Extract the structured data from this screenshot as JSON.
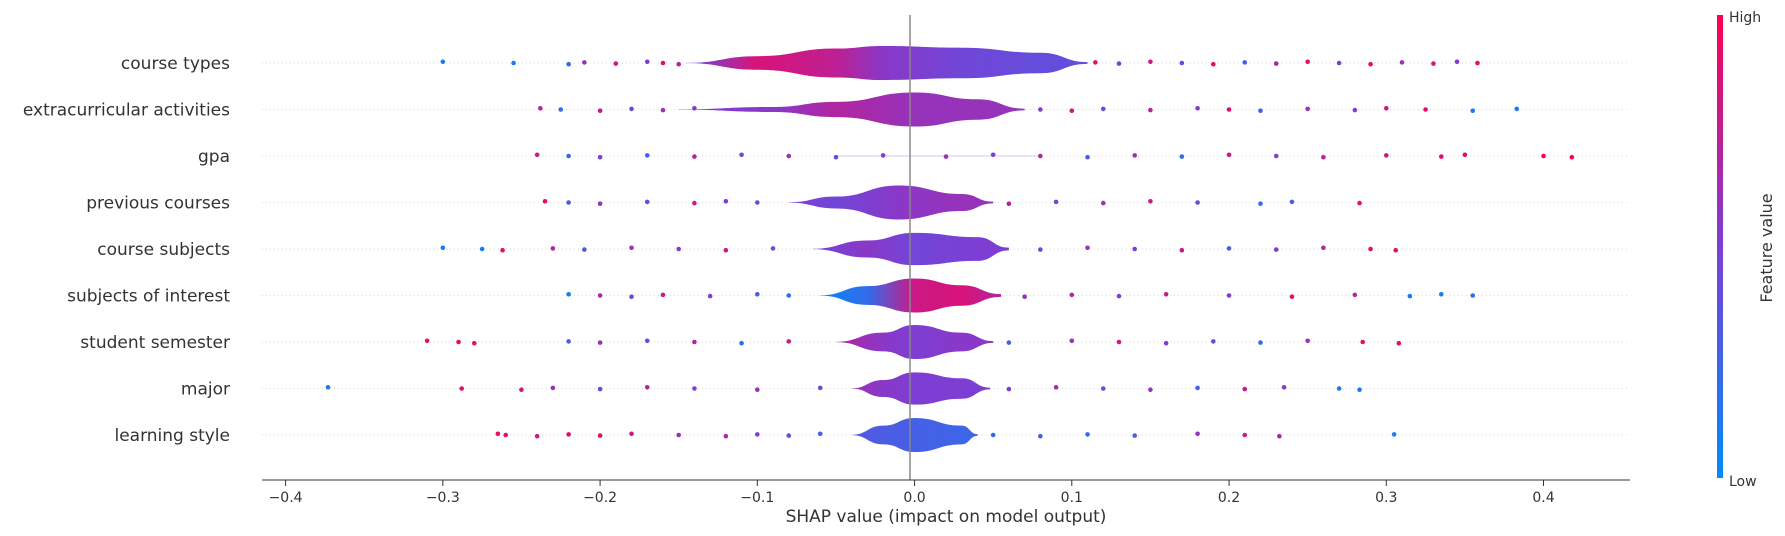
{
  "chart_data": {
    "type": "scatter",
    "subtype": "violin-summary",
    "title": "",
    "xlabel": "SHAP value (impact on model output)",
    "xlim": [
      -0.415,
      0.455
    ],
    "xticks": [
      "−0.4",
      "−0.3",
      "−0.2",
      "−0.1",
      "0.0",
      "0.1",
      "0.2",
      "0.3",
      "0.4"
    ],
    "xtick_values": [
      -0.4,
      -0.3,
      -0.2,
      -0.1,
      0.0,
      0.1,
      0.2,
      0.3,
      0.4
    ],
    "colorbar": {
      "title": "Feature value",
      "high_label": "High",
      "low_label": "Low",
      "low_color": "#008bfb",
      "high_color": "#ff0052"
    },
    "features": [
      {
        "name": "course types",
        "min": -0.303,
        "max": 0.36,
        "violin": [
          [
            -0.145,
            0.01,
            0.4
          ],
          [
            -0.1,
            0.4,
            0.85
          ],
          [
            -0.05,
            0.85,
            0.75
          ],
          [
            -0.02,
            1.0,
            0.55
          ],
          [
            0.03,
            0.9,
            0.45
          ],
          [
            0.08,
            0.6,
            0.4
          ],
          [
            0.11,
            0.05,
            0.4
          ]
        ],
        "points": [
          [
            -0.3,
            0.1
          ],
          [
            -0.255,
            0.1
          ],
          [
            -0.22,
            0.2
          ],
          [
            -0.21,
            0.6
          ],
          [
            -0.19,
            0.8
          ],
          [
            -0.17,
            0.5
          ],
          [
            -0.16,
            0.9
          ],
          [
            -0.15,
            0.7
          ],
          [
            0.115,
            0.9
          ],
          [
            0.13,
            0.5
          ],
          [
            0.15,
            0.8
          ],
          [
            0.17,
            0.4
          ],
          [
            0.19,
            0.9
          ],
          [
            0.21,
            0.3
          ],
          [
            0.23,
            0.7
          ],
          [
            0.25,
            0.9
          ],
          [
            0.27,
            0.5
          ],
          [
            0.29,
            0.9
          ],
          [
            0.31,
            0.6
          ],
          [
            0.33,
            0.8
          ],
          [
            0.345,
            0.5
          ],
          [
            0.358,
            0.9
          ]
        ]
      },
      {
        "name": "extracurricular activities",
        "min": -0.24,
        "max": 0.383,
        "violin": [
          [
            -0.15,
            0.01,
            0.5
          ],
          [
            -0.09,
            0.15,
            0.55
          ],
          [
            -0.05,
            0.45,
            0.7
          ],
          [
            0.0,
            1.0,
            0.6
          ],
          [
            0.04,
            0.6,
            0.6
          ],
          [
            0.07,
            0.05,
            0.6
          ]
        ],
        "points": [
          [
            -0.238,
            0.7
          ],
          [
            -0.225,
            0.2
          ],
          [
            -0.2,
            0.8
          ],
          [
            -0.18,
            0.4
          ],
          [
            -0.16,
            0.6
          ],
          [
            -0.14,
            0.5
          ],
          [
            0.08,
            0.5
          ],
          [
            0.1,
            0.8
          ],
          [
            0.12,
            0.4
          ],
          [
            0.15,
            0.7
          ],
          [
            0.18,
            0.5
          ],
          [
            0.2,
            0.9
          ],
          [
            0.22,
            0.3
          ],
          [
            0.25,
            0.6
          ],
          [
            0.28,
            0.5
          ],
          [
            0.3,
            0.8
          ],
          [
            0.325,
            0.9
          ],
          [
            0.355,
            0.1
          ],
          [
            0.383,
            0.1
          ]
        ]
      },
      {
        "name": "gpa",
        "min": -0.245,
        "max": 0.418,
        "violin": [
          [
            -0.05,
            0.01,
            0.5
          ],
          [
            0.0,
            0.01,
            0.5
          ],
          [
            0.08,
            0.01,
            0.6
          ]
        ],
        "points": [
          [
            -0.24,
            0.8
          ],
          [
            -0.22,
            0.2
          ],
          [
            -0.2,
            0.5
          ],
          [
            -0.17,
            0.3
          ],
          [
            -0.14,
            0.7
          ],
          [
            -0.11,
            0.4
          ],
          [
            -0.08,
            0.6
          ],
          [
            -0.05,
            0.4
          ],
          [
            -0.02,
            0.5
          ],
          [
            0.02,
            0.6
          ],
          [
            0.05,
            0.5
          ],
          [
            0.08,
            0.7
          ],
          [
            0.11,
            0.3
          ],
          [
            0.14,
            0.6
          ],
          [
            0.17,
            0.2
          ],
          [
            0.2,
            0.8
          ],
          [
            0.23,
            0.5
          ],
          [
            0.26,
            0.7
          ],
          [
            0.3,
            0.8
          ],
          [
            0.335,
            0.9
          ],
          [
            0.35,
            0.9
          ],
          [
            0.4,
            1.0
          ],
          [
            0.418,
            1.0
          ]
        ]
      },
      {
        "name": "previous courses",
        "min": -0.236,
        "max": 0.283,
        "violin": [
          [
            -0.08,
            0.01,
            0.5
          ],
          [
            -0.05,
            0.35,
            0.45
          ],
          [
            -0.01,
            1.0,
            0.55
          ],
          [
            0.03,
            0.5,
            0.6
          ],
          [
            0.05,
            0.05,
            0.6
          ]
        ],
        "points": [
          [
            -0.235,
            0.9
          ],
          [
            -0.22,
            0.3
          ],
          [
            -0.2,
            0.6
          ],
          [
            -0.17,
            0.4
          ],
          [
            -0.14,
            0.8
          ],
          [
            -0.12,
            0.5
          ],
          [
            -0.1,
            0.4
          ],
          [
            0.06,
            0.7
          ],
          [
            0.09,
            0.5
          ],
          [
            0.12,
            0.6
          ],
          [
            0.15,
            0.8
          ],
          [
            0.18,
            0.4
          ],
          [
            0.22,
            0.2
          ],
          [
            0.24,
            0.3
          ],
          [
            0.283,
            0.9
          ]
        ]
      },
      {
        "name": "course subjects",
        "min": -0.3,
        "max": 0.306,
        "violin": [
          [
            -0.065,
            0.01,
            0.45
          ],
          [
            -0.03,
            0.5,
            0.55
          ],
          [
            0.0,
            0.95,
            0.45
          ],
          [
            0.04,
            0.7,
            0.5
          ],
          [
            0.06,
            0.08,
            0.5
          ]
        ],
        "points": [
          [
            -0.3,
            0.1
          ],
          [
            -0.275,
            0.1
          ],
          [
            -0.262,
            0.9
          ],
          [
            -0.23,
            0.7
          ],
          [
            -0.21,
            0.3
          ],
          [
            -0.18,
            0.6
          ],
          [
            -0.15,
            0.5
          ],
          [
            -0.12,
            0.8
          ],
          [
            -0.09,
            0.4
          ],
          [
            0.08,
            0.4
          ],
          [
            0.11,
            0.6
          ],
          [
            0.14,
            0.5
          ],
          [
            0.17,
            0.8
          ],
          [
            0.2,
            0.3
          ],
          [
            0.23,
            0.5
          ],
          [
            0.26,
            0.7
          ],
          [
            0.29,
            0.9
          ],
          [
            0.306,
            0.9
          ]
        ]
      },
      {
        "name": "subjects of interest",
        "min": -0.22,
        "max": 0.355,
        "violin": [
          [
            -0.06,
            0.01,
            0.05
          ],
          [
            -0.03,
            0.55,
            0.2
          ],
          [
            0.0,
            1.0,
            0.8
          ],
          [
            0.03,
            0.6,
            0.85
          ],
          [
            0.055,
            0.08,
            0.7
          ]
        ],
        "points": [
          [
            -0.22,
            0.1
          ],
          [
            -0.2,
            0.7
          ],
          [
            -0.18,
            0.4
          ],
          [
            -0.16,
            0.8
          ],
          [
            -0.13,
            0.5
          ],
          [
            -0.1,
            0.3
          ],
          [
            -0.08,
            0.2
          ],
          [
            0.07,
            0.6
          ],
          [
            0.1,
            0.7
          ],
          [
            0.13,
            0.5
          ],
          [
            0.16,
            0.8
          ],
          [
            0.2,
            0.5
          ],
          [
            0.24,
            0.9
          ],
          [
            0.28,
            0.7
          ],
          [
            0.315,
            0.1
          ],
          [
            0.335,
            0.1
          ],
          [
            0.355,
            0.2
          ]
        ]
      },
      {
        "name": "student semester",
        "min": -0.31,
        "max": 0.308,
        "violin": [
          [
            -0.05,
            0.01,
            0.7
          ],
          [
            -0.02,
            0.55,
            0.55
          ],
          [
            0.0,
            1.0,
            0.5
          ],
          [
            0.03,
            0.55,
            0.55
          ],
          [
            0.05,
            0.05,
            0.55
          ]
        ],
        "points": [
          [
            -0.31,
            0.9
          ],
          [
            -0.29,
            0.9
          ],
          [
            -0.28,
            0.9
          ],
          [
            -0.22,
            0.3
          ],
          [
            -0.2,
            0.6
          ],
          [
            -0.17,
            0.4
          ],
          [
            -0.14,
            0.7
          ],
          [
            -0.11,
            0.2
          ],
          [
            -0.08,
            0.8
          ],
          [
            0.06,
            0.3
          ],
          [
            0.1,
            0.6
          ],
          [
            0.13,
            0.8
          ],
          [
            0.16,
            0.5
          ],
          [
            0.19,
            0.4
          ],
          [
            0.22,
            0.2
          ],
          [
            0.25,
            0.6
          ],
          [
            0.285,
            0.9
          ],
          [
            0.308,
            0.9
          ]
        ]
      },
      {
        "name": "major",
        "min": -0.373,
        "max": 0.283,
        "violin": [
          [
            -0.04,
            0.01,
            0.6
          ],
          [
            -0.02,
            0.5,
            0.55
          ],
          [
            0.0,
            0.95,
            0.5
          ],
          [
            0.03,
            0.6,
            0.5
          ],
          [
            0.048,
            0.05,
            0.5
          ]
        ],
        "points": [
          [
            -0.373,
            0.1
          ],
          [
            -0.288,
            0.9
          ],
          [
            -0.25,
            0.8
          ],
          [
            -0.23,
            0.6
          ],
          [
            -0.2,
            0.4
          ],
          [
            -0.17,
            0.7
          ],
          [
            -0.14,
            0.5
          ],
          [
            -0.1,
            0.6
          ],
          [
            -0.06,
            0.4
          ],
          [
            0.06,
            0.5
          ],
          [
            0.09,
            0.7
          ],
          [
            0.12,
            0.4
          ],
          [
            0.15,
            0.6
          ],
          [
            0.18,
            0.3
          ],
          [
            0.21,
            0.8
          ],
          [
            0.235,
            0.5
          ],
          [
            0.27,
            0.1
          ],
          [
            0.283,
            0.1
          ]
        ]
      },
      {
        "name": "learning style",
        "min": -0.265,
        "max": 0.305,
        "violin": [
          [
            -0.04,
            0.01,
            0.35
          ],
          [
            -0.02,
            0.55,
            0.3
          ],
          [
            0.0,
            1.0,
            0.28
          ],
          [
            0.03,
            0.55,
            0.25
          ],
          [
            0.04,
            0.05,
            0.22
          ]
        ],
        "points": [
          [
            -0.265,
            0.9
          ],
          [
            -0.26,
            0.9
          ],
          [
            -0.24,
            0.8
          ],
          [
            -0.22,
            0.9
          ],
          [
            -0.2,
            0.9
          ],
          [
            -0.18,
            0.8
          ],
          [
            -0.15,
            0.6
          ],
          [
            -0.12,
            0.7
          ],
          [
            -0.1,
            0.5
          ],
          [
            -0.08,
            0.4
          ],
          [
            -0.06,
            0.3
          ],
          [
            0.05,
            0.2
          ],
          [
            0.08,
            0.3
          ],
          [
            0.11,
            0.2
          ],
          [
            0.14,
            0.3
          ],
          [
            0.18,
            0.6
          ],
          [
            0.21,
            0.8
          ],
          [
            0.232,
            0.7
          ],
          [
            0.305,
            0.1
          ]
        ]
      }
    ]
  }
}
